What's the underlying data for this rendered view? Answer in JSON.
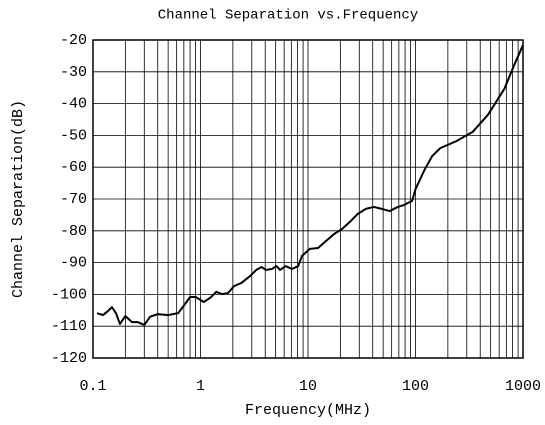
{
  "chart_data": {
    "type": "line",
    "title": "Channel Separation vs.Frequency",
    "xlabel": "Frequency(MHz)",
    "ylabel": "Channel Separation(dB)",
    "xscale": "log",
    "grid": true,
    "color": "#000000",
    "x": [
      0.109,
      0.124,
      0.138,
      0.15,
      0.164,
      0.178,
      0.2,
      0.23,
      0.26,
      0.3,
      0.34,
      0.4,
      0.5,
      0.62,
      0.73,
      0.8,
      0.9,
      1.07,
      1.23,
      1.4,
      1.58,
      1.8,
      2.05,
      2.4,
      2.9,
      3.3,
      3.7,
      4.06,
      4.6,
      5.1,
      5.5,
      6.2,
      7.1,
      8.1,
      8.8,
      10.4,
      12.4,
      14.7,
      17.5,
      20.8,
      24.5,
      29,
      34.5,
      41,
      48.5,
      57.5,
      68.5,
      78,
      93,
      100,
      121,
      143,
      170,
      240,
      340,
      470,
      670,
      820,
      1000
    ],
    "values": [
      -105.9,
      -106.5,
      -105.2,
      -104,
      -106,
      -109.3,
      -106.8,
      -108.7,
      -108.7,
      -109.6,
      -107,
      -106.2,
      -106.5,
      -105.9,
      -102.7,
      -100.8,
      -100.8,
      -102.4,
      -101.1,
      -99.2,
      -99.9,
      -99.6,
      -97.4,
      -96.4,
      -94.2,
      -92.3,
      -91.4,
      -92.3,
      -92,
      -91.1,
      -92.3,
      -91.1,
      -92,
      -91.1,
      -87.9,
      -85.7,
      -85.4,
      -83.2,
      -81,
      -79.4,
      -77.2,
      -74.7,
      -73.1,
      -72.5,
      -73.1,
      -73.8,
      -72.5,
      -71.9,
      -70.6,
      -66.9,
      -60.9,
      -56.5,
      -54,
      -51.8,
      -48.9,
      -43.6,
      -35.4,
      -28.2,
      -21.6
    ],
    "xlim": [
      0.1,
      1000
    ],
    "xticks": [
      0.1,
      1,
      10,
      100,
      1000
    ],
    "ylim": [
      -120,
      -20
    ],
    "yticks": [
      -120,
      -110,
      -100,
      -90,
      -80,
      -70,
      -60,
      -50,
      -40,
      -30,
      -20
    ]
  }
}
